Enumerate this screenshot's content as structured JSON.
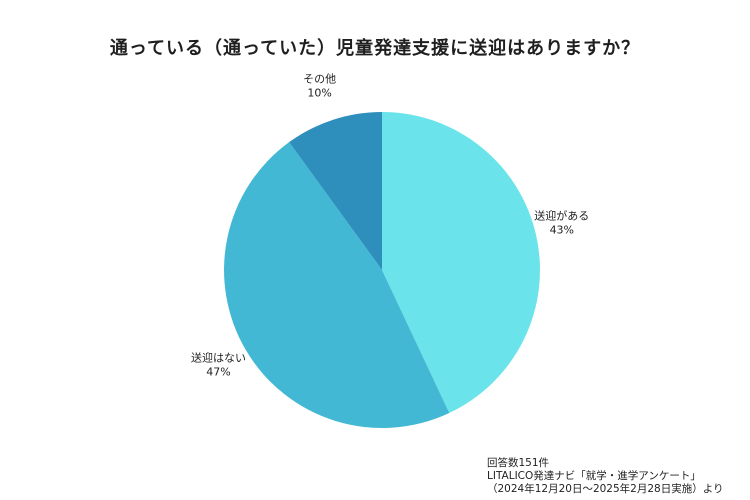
{
  "title": "通っている（通っていた）児童発達支援に送迎はありますか？",
  "chart_data": {
    "type": "pie",
    "title": "通っている（通っていた）児童発達支援に送迎はありますか？",
    "slices": [
      {
        "label": "送迎がある",
        "value": 43,
        "display": "43%",
        "color": "#6ae4ea"
      },
      {
        "label": "送迎はない",
        "value": 47,
        "display": "47%",
        "color": "#42b8d4"
      },
      {
        "label": "その他",
        "value": 10,
        "display": "10%",
        "color": "#2e8fbd"
      }
    ],
    "start_angle": "12 o'clock",
    "direction": "clockwise"
  },
  "footer": {
    "line1": "回答数151件",
    "line2": "LITALICO発達ナビ「就学・進学アンケート」",
    "line3": "（2024年12月20日～2025年2月28日実施）より"
  }
}
